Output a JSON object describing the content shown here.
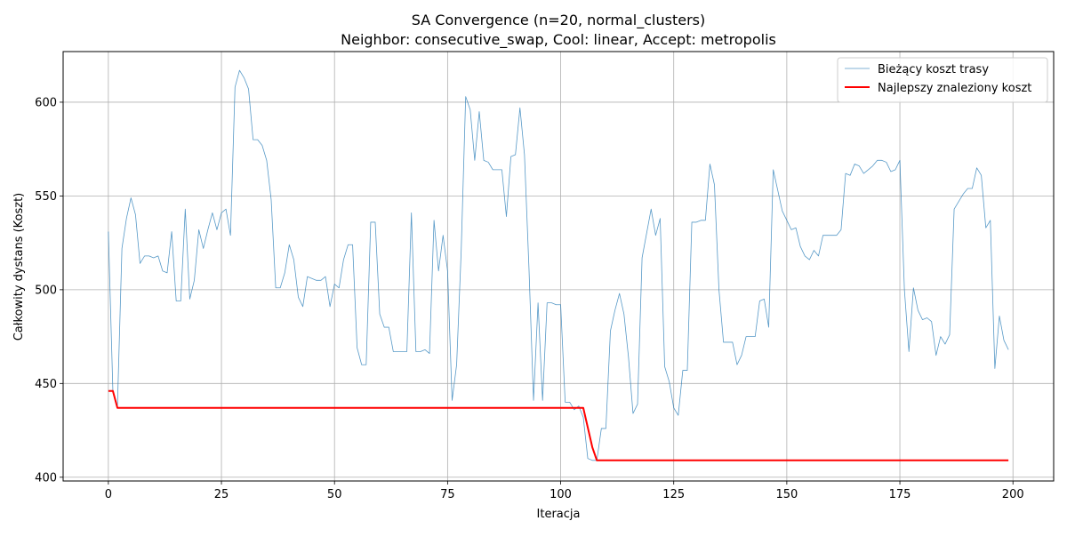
{
  "chart_data": {
    "type": "line",
    "title_line1": "SA Convergence (n=20, normal_clusters)",
    "title_line2": "Neighbor: consecutive_swap, Cool: linear, Accept: metropolis",
    "xlabel": "Iteracja",
    "ylabel": "Całkowity dystans (Koszt)",
    "xlim": [
      -10,
      209
    ],
    "ylim": [
      398,
      627
    ],
    "xticks": [
      0,
      25,
      50,
      75,
      100,
      125,
      150,
      175,
      200
    ],
    "yticks": [
      400,
      450,
      500,
      550,
      600
    ],
    "grid": true,
    "legend_position": "top-right",
    "series": [
      {
        "name": "Bieżący koszt trasy",
        "color": "#1f77b4",
        "style": "thin",
        "x": [
          0,
          1,
          2,
          3,
          4,
          5,
          6,
          7,
          8,
          9,
          10,
          11,
          12,
          13,
          14,
          15,
          16,
          17,
          18,
          19,
          20,
          21,
          22,
          23,
          24,
          25,
          26,
          27,
          28,
          29,
          30,
          31,
          32,
          33,
          34,
          35,
          36,
          37,
          38,
          39,
          40,
          41,
          42,
          43,
          44,
          45,
          46,
          47,
          48,
          49,
          50,
          51,
          52,
          53,
          54,
          55,
          56,
          57,
          58,
          59,
          60,
          61,
          62,
          63,
          64,
          65,
          66,
          67,
          68,
          69,
          70,
          71,
          72,
          73,
          74,
          75,
          76,
          77,
          78,
          79,
          80,
          81,
          82,
          83,
          84,
          85,
          86,
          87,
          88,
          89,
          90,
          91,
          92,
          93,
          94,
          95,
          96,
          97,
          98,
          99,
          100,
          101,
          102,
          103,
          104,
          105,
          106,
          107,
          108,
          109,
          110,
          111,
          112,
          113,
          114,
          115,
          116,
          117,
          118,
          119,
          120,
          121,
          122,
          123,
          124,
          125,
          126,
          127,
          128,
          129,
          130,
          131,
          132,
          133,
          134,
          135,
          136,
          137,
          138,
          139,
          140,
          141,
          142,
          143,
          144,
          145,
          146,
          147,
          148,
          149,
          150,
          151,
          152,
          153,
          154,
          155,
          156,
          157,
          158,
          159,
          160,
          161,
          162,
          163,
          164,
          165,
          166,
          167,
          168,
          169,
          170,
          171,
          172,
          173,
          174,
          175,
          176,
          177,
          178,
          179,
          180,
          181,
          182,
          183,
          184,
          185,
          186,
          187,
          188,
          189,
          190,
          191,
          192,
          193,
          194,
          195,
          196,
          197,
          198,
          199
        ],
        "y": [
          531,
          446,
          437,
          522,
          538,
          549,
          540,
          514,
          518,
          518,
          517,
          518,
          510,
          509,
          531,
          494,
          494,
          543,
          495,
          505,
          532,
          522,
          532,
          541,
          532,
          541,
          543,
          529,
          608,
          617,
          613,
          607,
          580,
          580,
          577,
          569,
          548,
          501,
          501,
          509,
          524,
          516,
          496,
          491,
          507,
          506,
          505,
          505,
          507,
          491,
          503,
          501,
          516,
          524,
          524,
          469,
          460,
          460,
          536,
          536,
          487,
          480,
          480,
          467,
          467,
          467,
          467,
          541,
          467,
          467,
          468,
          466,
          537,
          510,
          529,
          510,
          441,
          460,
          520,
          603,
          596,
          569,
          595,
          569,
          568,
          564,
          564,
          564,
          539,
          571,
          572,
          597,
          572,
          511,
          441,
          493,
          441,
          493,
          493,
          492,
          492,
          440,
          440,
          436,
          438,
          432,
          410,
          409,
          409,
          426,
          426,
          478,
          489,
          498,
          487,
          464,
          434,
          439,
          517,
          530,
          543,
          529,
          538,
          459,
          451,
          437,
          433,
          457,
          457,
          536,
          536,
          537,
          537,
          567,
          556,
          500,
          472,
          472,
          472,
          460,
          465,
          475,
          475,
          475,
          494,
          495,
          480,
          564,
          553,
          542,
          537,
          532,
          533,
          523,
          518,
          516,
          521,
          518,
          529,
          529,
          529,
          529,
          532,
          562,
          561,
          567,
          566,
          562,
          564,
          566,
          569,
          569,
          568,
          563,
          564,
          569,
          500,
          467,
          501,
          489,
          484,
          485,
          483,
          465,
          475,
          471,
          476,
          543,
          547,
          551,
          554,
          554,
          565,
          561,
          533,
          537,
          458,
          486,
          473,
          468
        ]
      },
      {
        "name": "Najlepszy znaleziony koszt",
        "color": "#ff0000",
        "style": "thick",
        "x": [
          0,
          1,
          2,
          105,
          107,
          108,
          199
        ],
        "y": [
          446,
          446,
          437,
          437,
          416,
          409,
          409
        ]
      }
    ]
  }
}
